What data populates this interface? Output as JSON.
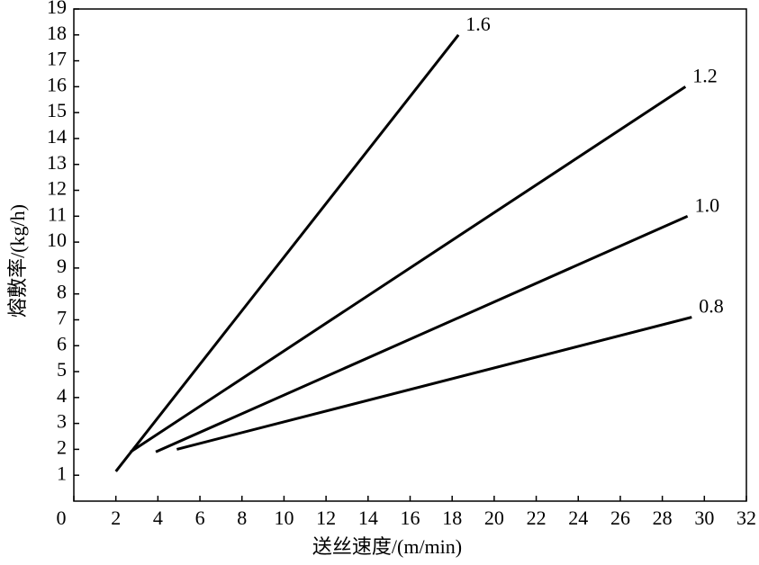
{
  "chart_data": {
    "type": "line",
    "xlabel": "送丝速度/(m/min)",
    "ylabel": "熔敷率/(kg/h)",
    "xlim": [
      0,
      32
    ],
    "xticks": [
      0,
      2,
      4,
      6,
      8,
      10,
      12,
      14,
      16,
      18,
      20,
      22,
      24,
      26,
      28,
      30,
      32
    ],
    "ylim": [
      0,
      19
    ],
    "yticks": [
      1,
      2,
      3,
      4,
      5,
      6,
      7,
      8,
      9,
      10,
      11,
      12,
      13,
      14,
      15,
      16,
      17,
      18,
      19
    ],
    "series": [
      {
        "name": "1.6",
        "color": "#000000",
        "x": [
          2.0,
          18.3
        ],
        "values": [
          1.15,
          18.0
        ]
      },
      {
        "name": "1.2",
        "color": "#000000",
        "x": [
          2.7,
          29.1
        ],
        "values": [
          1.9,
          16.0
        ]
      },
      {
        "name": "1.0",
        "color": "#000000",
        "x": [
          3.9,
          29.2
        ],
        "values": [
          1.9,
          11.0
        ]
      },
      {
        "name": "0.8",
        "color": "#000000",
        "x": [
          4.9,
          29.4
        ],
        "values": [
          2.0,
          7.1
        ]
      }
    ]
  }
}
